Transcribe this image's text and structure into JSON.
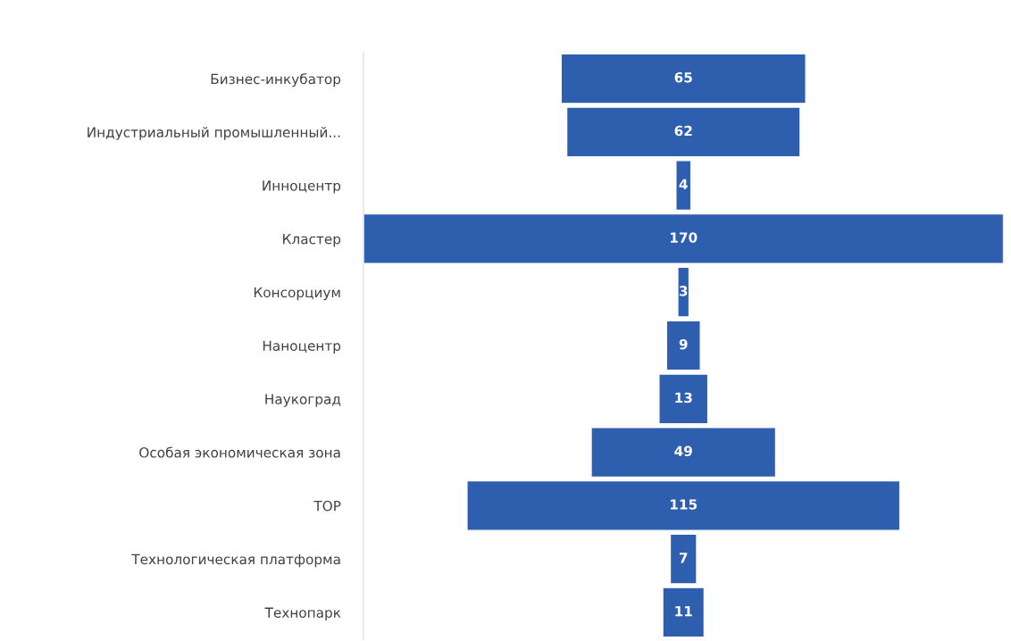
{
  "chart_data": {
    "type": "other",
    "categories": [
      "Бизнес-инкубатор",
      "Индустриальный промышленный...",
      "Инноцентр",
      "Кластер",
      "Консорциум",
      "Наноцентр",
      "Наукоград",
      "Особая экономическая зона",
      "ТОР",
      "Технологическая платформа",
      "Технопарк"
    ],
    "values": [
      65,
      62,
      4,
      170,
      3,
      9,
      13,
      49,
      115,
      7,
      11
    ],
    "color": "#2e5fae",
    "data_labels": true
  }
}
